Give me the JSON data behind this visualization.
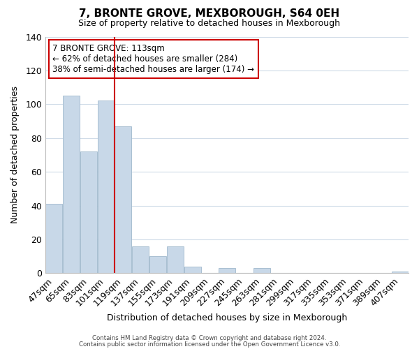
{
  "title": "7, BRONTE GROVE, MEXBOROUGH, S64 0EH",
  "subtitle": "Size of property relative to detached houses in Mexborough",
  "xlabel": "Distribution of detached houses by size in Mexborough",
  "ylabel": "Number of detached properties",
  "bar_labels": [
    "47sqm",
    "65sqm",
    "83sqm",
    "101sqm",
    "119sqm",
    "137sqm",
    "155sqm",
    "173sqm",
    "191sqm",
    "209sqm",
    "227sqm",
    "245sqm",
    "263sqm",
    "281sqm",
    "299sqm",
    "317sqm",
    "335sqm",
    "353sqm",
    "371sqm",
    "389sqm",
    "407sqm"
  ],
  "bar_values": [
    41,
    105,
    72,
    102,
    87,
    16,
    10,
    16,
    4,
    0,
    3,
    0,
    3,
    0,
    0,
    0,
    0,
    0,
    0,
    0,
    1
  ],
  "bar_color": "#c8d8e8",
  "bar_edge_color": "#a0b8cc",
  "vline_color": "#cc0000",
  "vline_index": 4,
  "ylim": [
    0,
    140
  ],
  "yticks": [
    0,
    20,
    40,
    60,
    80,
    100,
    120,
    140
  ],
  "annotation_title": "7 BRONTE GROVE: 113sqm",
  "annotation_line1": "← 62% of detached houses are smaller (284)",
  "annotation_line2": "38% of semi-detached houses are larger (174) →",
  "annotation_box_color": "#ffffff",
  "annotation_box_edge": "#cc0000",
  "footer_line1": "Contains HM Land Registry data © Crown copyright and database right 2024.",
  "footer_line2": "Contains public sector information licensed under the Open Government Licence v3.0.",
  "background_color": "#ffffff",
  "grid_color": "#d0dce8"
}
